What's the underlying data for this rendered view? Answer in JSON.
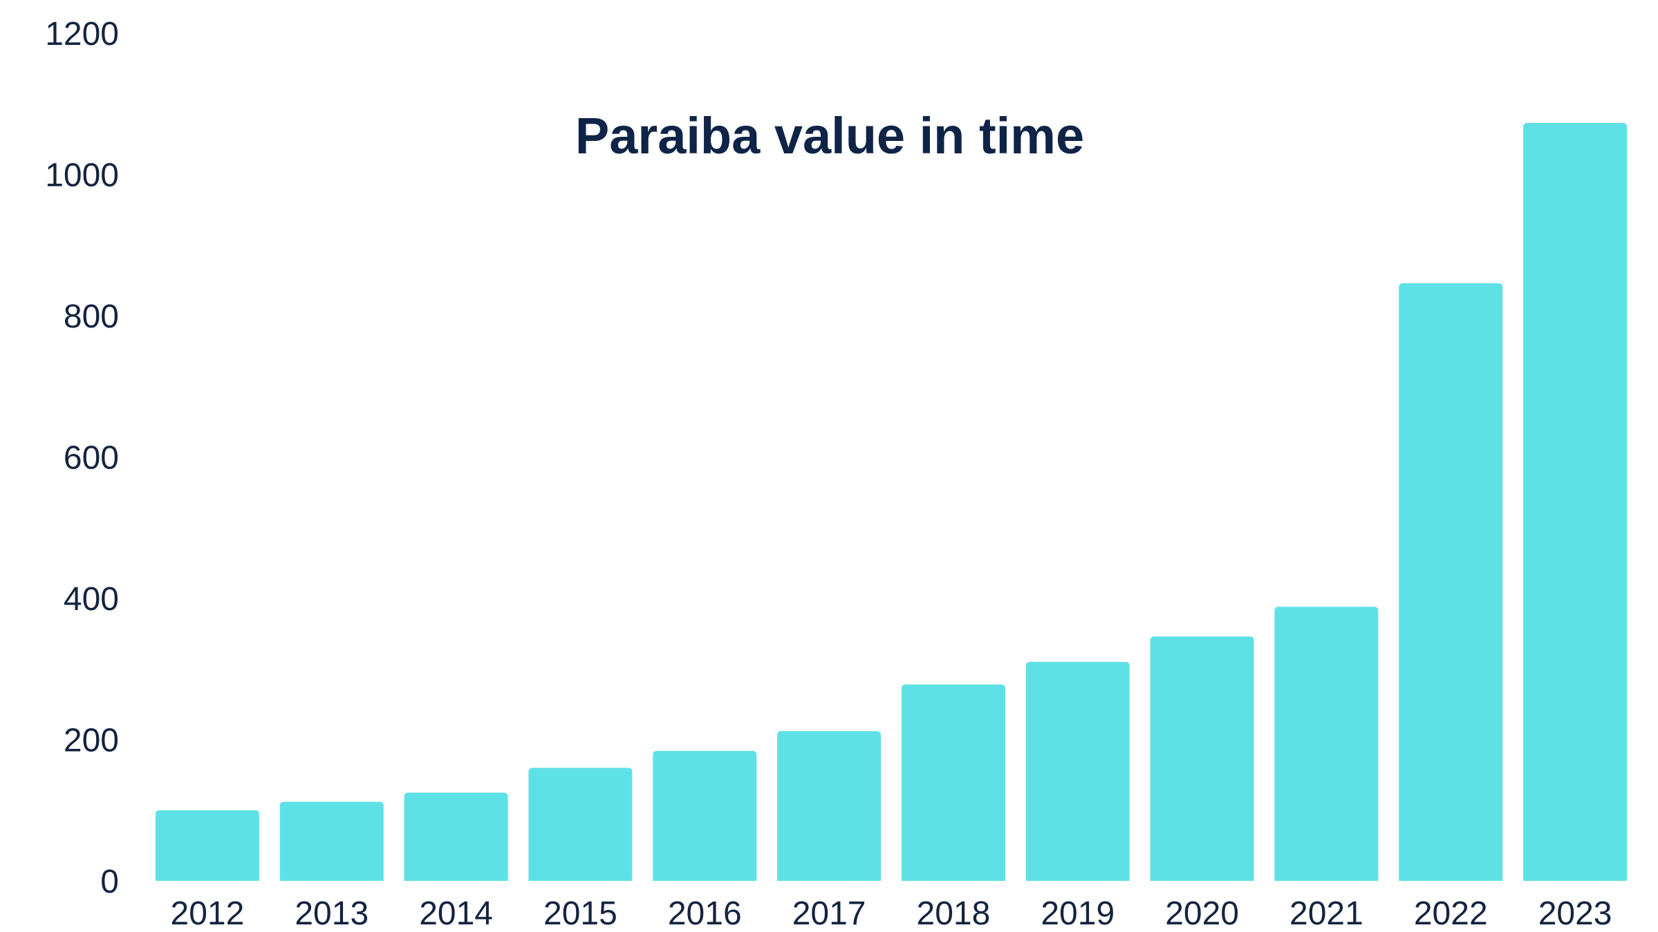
{
  "chart_data": {
    "type": "bar",
    "title": "Paraiba value in time",
    "xlabel": "",
    "ylabel": "",
    "categories": [
      "2012",
      "2013",
      "2014",
      "2015",
      "2016",
      "2017",
      "2018",
      "2019",
      "2020",
      "2021",
      "2022",
      "2023"
    ],
    "values": [
      100,
      112,
      125,
      160,
      184,
      212,
      278,
      310,
      346,
      388,
      846,
      1073
    ],
    "ylim": [
      0,
      1200
    ],
    "yticks": [
      "0",
      "200",
      "400",
      "600",
      "800",
      "1000",
      "1200"
    ],
    "grid": false,
    "legend": "none",
    "bar_color": "#5ee1e6",
    "text_color": "#14243f",
    "title_color": "#0f2446"
  }
}
